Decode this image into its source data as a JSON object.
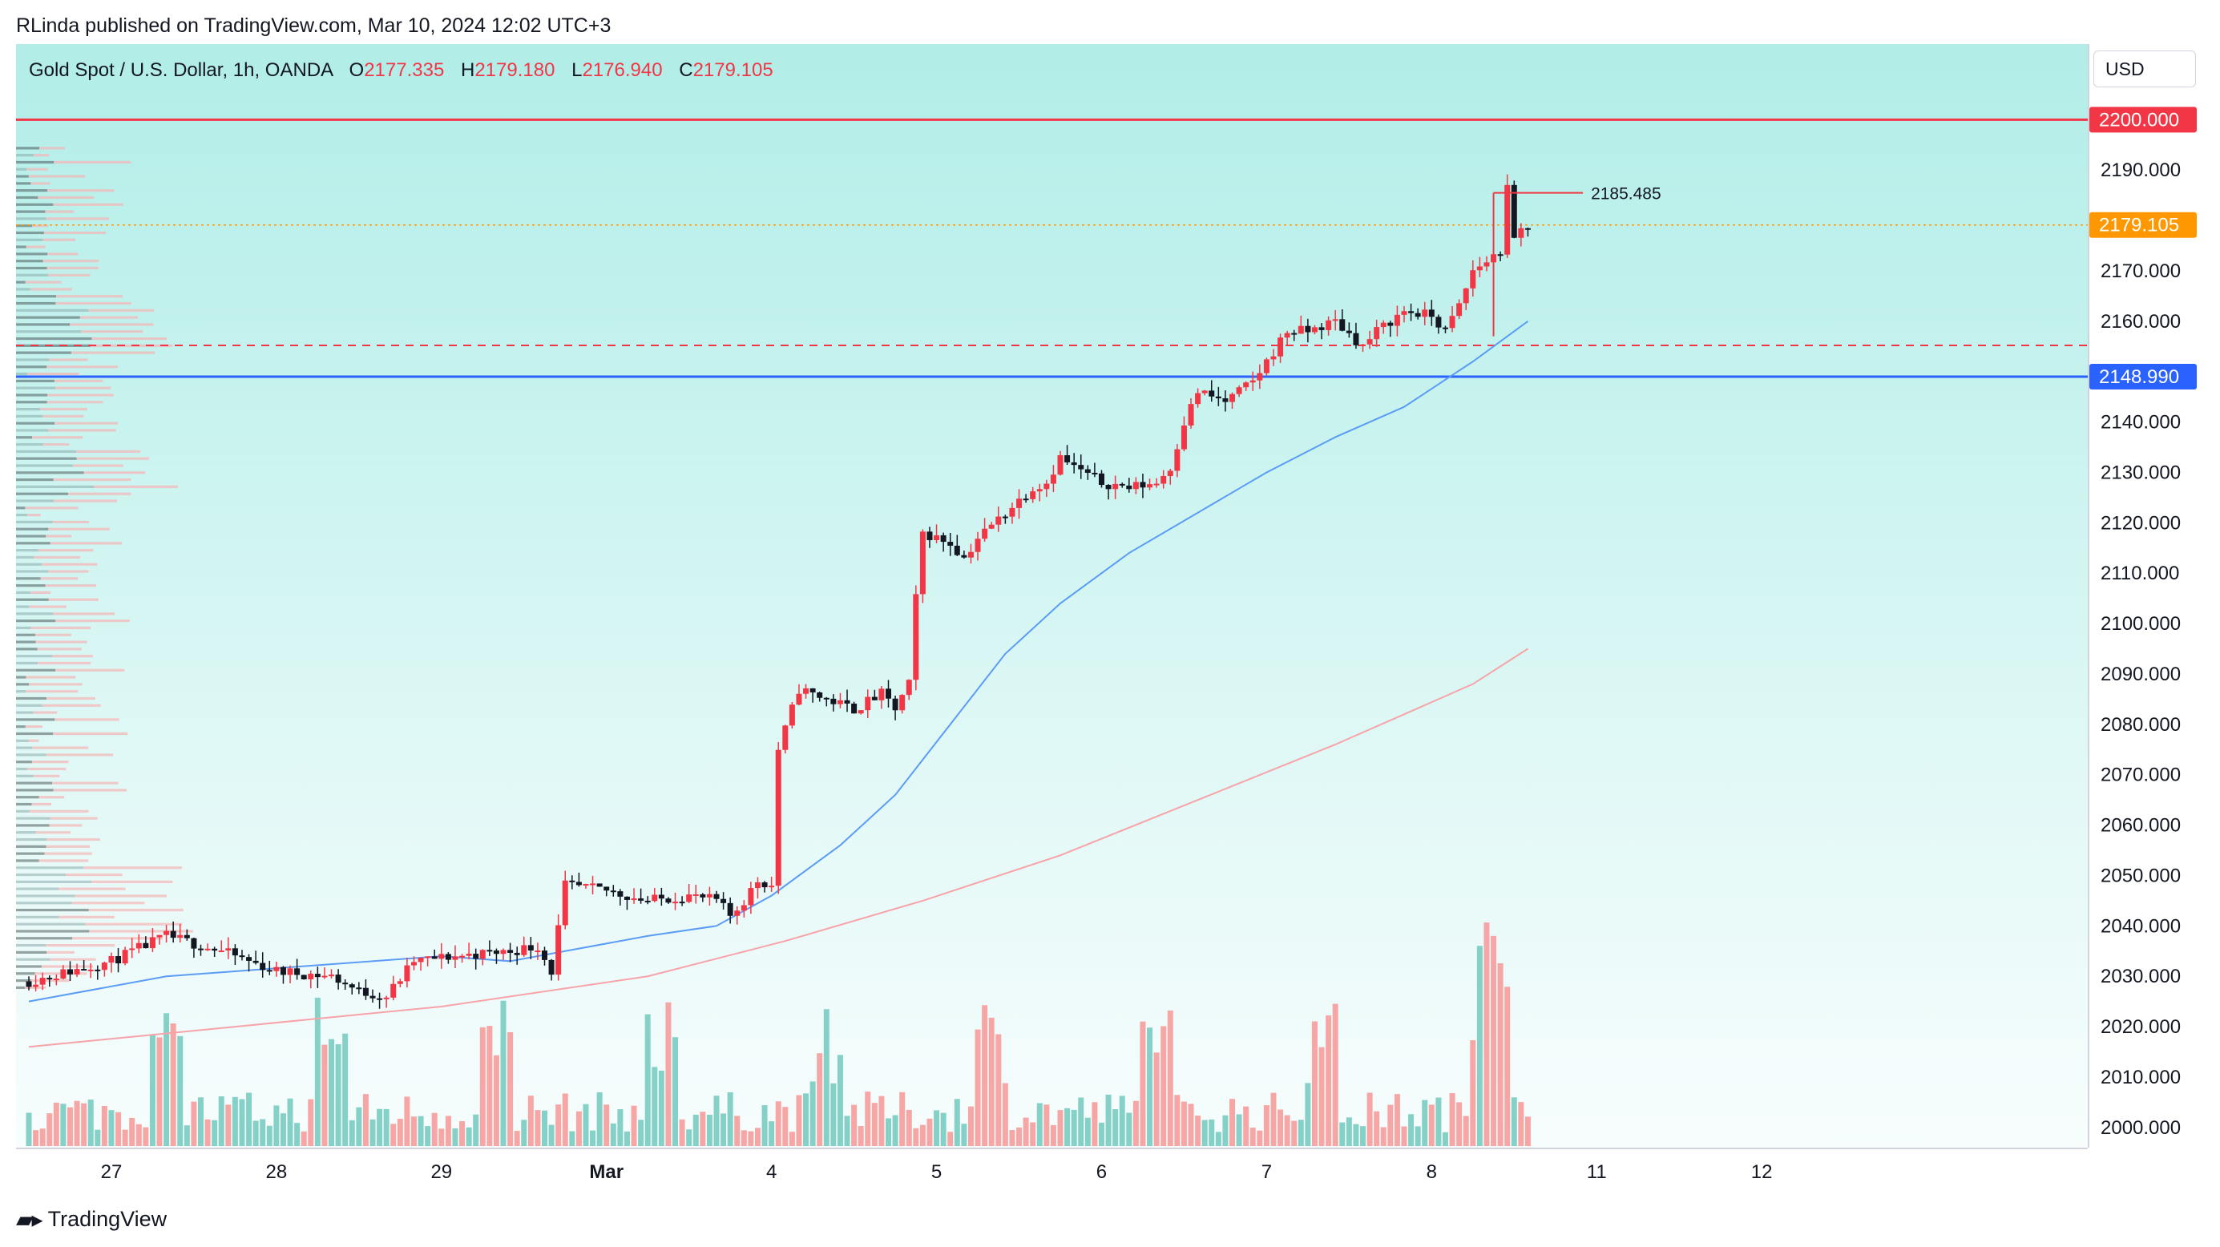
{
  "header": {
    "published_line": "RLinda published on TradingView.com, Mar 10, 2024 12:02 UTC+3"
  },
  "legend": {
    "symbol": "Gold Spot / U.S. Dollar, 1h, OANDA",
    "o_label": "O",
    "o_value": "2177.335",
    "h_label": "H",
    "h_value": "2179.180",
    "l_label": "L",
    "l_value": "2176.940",
    "c_label": "C",
    "c_value": "2179.105"
  },
  "currency_button": "USD",
  "footer": {
    "brand": "TradingView",
    "logo_icon": "tradingview-logo-icon"
  },
  "colors": {
    "up": "#f23645",
    "down": "#131722",
    "ma_fast": "#5b9cf6",
    "ma_slow": "#f7a3a8",
    "line_2200": "#f23645",
    "line_2148": "#2962ff",
    "last_price": "#ff9800",
    "vol_up": "#f7a1a1",
    "vol_down": "#7fcfc4"
  },
  "chart_data": {
    "type": "candlestick",
    "symbol": "XAUUSD",
    "timeframe": "1h",
    "x_ticks": [
      {
        "label": "27",
        "hour": 12
      },
      {
        "label": "28",
        "hour": 36
      },
      {
        "label": "29",
        "hour": 60
      },
      {
        "label": "Mar",
        "hour": 84,
        "bold": true
      },
      {
        "label": "4",
        "hour": 108
      },
      {
        "label": "5",
        "hour": 132
      },
      {
        "label": "6",
        "hour": 156
      },
      {
        "label": "7",
        "hour": 180
      },
      {
        "label": "8",
        "hour": 204
      },
      {
        "label": "11",
        "hour": 228
      },
      {
        "label": "12",
        "hour": 252
      }
    ],
    "y_ticks": [
      "2190.000",
      "2180.000",
      "2170.000",
      "2160.000",
      "2150.000",
      "2140.000",
      "2130.000",
      "2120.000",
      "2110.000",
      "2100.000",
      "2090.000",
      "2080.000",
      "2070.000",
      "2060.000",
      "2050.000",
      "2040.000",
      "2030.000",
      "2020.000",
      "2010.000",
      "2000.000"
    ],
    "ylim": [
      1996,
      2215
    ],
    "price_close_path": [
      [
        0,
        2029
      ],
      [
        12,
        2033
      ],
      [
        20,
        2038
      ],
      [
        28,
        2035
      ],
      [
        36,
        2031
      ],
      [
        44,
        2030
      ],
      [
        48,
        2027
      ],
      [
        52,
        2026
      ],
      [
        56,
        2033
      ],
      [
        62,
        2034
      ],
      [
        70,
        2035
      ],
      [
        74,
        2036
      ],
      [
        76,
        2031
      ],
      [
        78,
        2048
      ],
      [
        84,
        2047
      ],
      [
        90,
        2045
      ],
      [
        96,
        2046
      ],
      [
        100,
        2045
      ],
      [
        102,
        2042
      ],
      [
        104,
        2045
      ],
      [
        106,
        2049
      ],
      [
        108,
        2048
      ],
      [
        109,
        2075
      ],
      [
        112,
        2087
      ],
      [
        116,
        2085
      ],
      [
        120,
        2083
      ],
      [
        124,
        2086
      ],
      [
        126,
        2083
      ],
      [
        128,
        2088
      ],
      [
        129,
        2105
      ],
      [
        130,
        2118
      ],
      [
        134,
        2116
      ],
      [
        136,
        2113
      ],
      [
        138,
        2117
      ],
      [
        142,
        2122
      ],
      [
        146,
        2127
      ],
      [
        148,
        2128
      ],
      [
        150,
        2133
      ],
      [
        152,
        2131
      ],
      [
        156,
        2128
      ],
      [
        160,
        2127
      ],
      [
        164,
        2128
      ],
      [
        166,
        2131
      ],
      [
        168,
        2140
      ],
      [
        170,
        2146
      ],
      [
        174,
        2144
      ],
      [
        178,
        2148
      ],
      [
        180,
        2152
      ],
      [
        183,
        2158
      ],
      [
        186,
        2158
      ],
      [
        190,
        2160
      ],
      [
        194,
        2155
      ],
      [
        196,
        2158
      ],
      [
        198,
        2160
      ],
      [
        200,
        2162
      ],
      [
        204,
        2161
      ],
      [
        206,
        2158
      ],
      [
        208,
        2163
      ],
      [
        210,
        2170
      ],
      [
        212,
        2172
      ],
      [
        214,
        2174
      ],
      [
        215,
        2186
      ],
      [
        216,
        2176
      ],
      [
        217,
        2178
      ],
      [
        218,
        2179
      ]
    ],
    "ma_fast_path": [
      [
        0,
        2025
      ],
      [
        20,
        2030
      ],
      [
        40,
        2032
      ],
      [
        60,
        2034
      ],
      [
        70,
        2033
      ],
      [
        78,
        2035
      ],
      [
        90,
        2038
      ],
      [
        100,
        2040
      ],
      [
        108,
        2046
      ],
      [
        118,
        2056
      ],
      [
        126,
        2066
      ],
      [
        134,
        2080
      ],
      [
        142,
        2094
      ],
      [
        150,
        2104
      ],
      [
        160,
        2114
      ],
      [
        170,
        2122
      ],
      [
        180,
        2130
      ],
      [
        190,
        2137
      ],
      [
        200,
        2143
      ],
      [
        210,
        2152
      ],
      [
        218,
        2160
      ]
    ],
    "ma_slow_path": [
      [
        0,
        2016
      ],
      [
        30,
        2020
      ],
      [
        60,
        2024
      ],
      [
        90,
        2030
      ],
      [
        110,
        2037
      ],
      [
        130,
        2045
      ],
      [
        150,
        2054
      ],
      [
        170,
        2065
      ],
      [
        190,
        2076
      ],
      [
        210,
        2088
      ],
      [
        218,
        2095
      ]
    ],
    "horizontal_levels": [
      {
        "price": 2200.0,
        "label": "2200.000",
        "style": "solid",
        "color": "#f23645"
      },
      {
        "price": 2148.99,
        "label": "2148.990",
        "style": "solid",
        "color": "#2962ff"
      },
      {
        "price": 2155.2,
        "label": "",
        "style": "dashed",
        "color": "#f23645"
      }
    ],
    "last_price": {
      "price": 2179.105,
      "label": "2179.105"
    },
    "annotation": {
      "text": "2185.485",
      "price": 2185.485,
      "from_hour": 213,
      "to_hour": 226
    },
    "volume_profile": true,
    "volume_bars": true,
    "hours_total": 260
  }
}
